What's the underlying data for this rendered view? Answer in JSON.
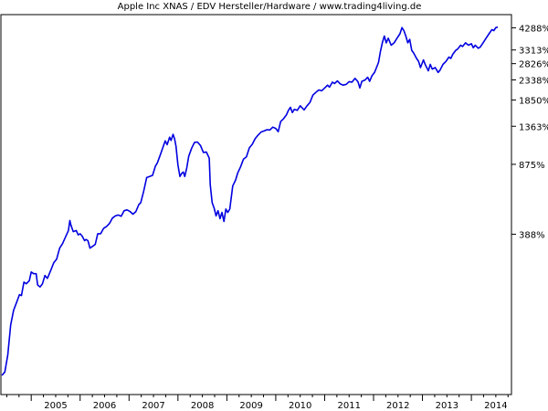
{
  "chart_data": {
    "type": "line",
    "title": "Apple Inc XNAS / EDV Hersteller/Hardware / www.trading4living.de",
    "xlabel": "",
    "ylabel": "",
    "y_scale": "log",
    "y_ticks": [
      {
        "value": 388,
        "label": "388%"
      },
      {
        "value": 875,
        "label": "875%"
      },
      {
        "value": 1363,
        "label": "1363%"
      },
      {
        "value": 1850,
        "label": "1850%"
      },
      {
        "value": 2338,
        "label": "2338%"
      },
      {
        "value": 2826,
        "label": "2826%"
      },
      {
        "value": 3313,
        "label": "3313%"
      },
      {
        "value": 4288,
        "label": "4288%"
      }
    ],
    "x_ticks": [
      "2005",
      "2006",
      "2007",
      "2008",
      "2009",
      "2010",
      "2011",
      "2012",
      "2013",
      "2014"
    ],
    "xlim": [
      2004.38,
      2014.82
    ],
    "ylim": [
      60,
      5000
    ],
    "grid": false,
    "legend": "none",
    "colors": {
      "line": "#0000e0",
      "frame": "#000000"
    },
    "series": [
      {
        "values": [
          [
            2004.4,
            75
          ],
          [
            2004.46,
            78
          ],
          [
            2004.52,
            95
          ],
          [
            2004.58,
            135
          ],
          [
            2004.64,
            160
          ],
          [
            2004.7,
            175
          ],
          [
            2004.76,
            192
          ],
          [
            2004.8,
            190
          ],
          [
            2004.85,
            222
          ],
          [
            2004.9,
            218
          ],
          [
            2004.96,
            226
          ],
          [
            2005.0,
            250
          ],
          [
            2005.05,
            245
          ],
          [
            2005.1,
            245
          ],
          [
            2005.13,
            215
          ],
          [
            2005.18,
            210
          ],
          [
            2005.23,
            218
          ],
          [
            2005.28,
            240
          ],
          [
            2005.33,
            232
          ],
          [
            2005.4,
            255
          ],
          [
            2005.46,
            278
          ],
          [
            2005.52,
            290
          ],
          [
            2005.58,
            330
          ],
          [
            2005.64,
            348
          ],
          [
            2005.7,
            375
          ],
          [
            2005.76,
            405
          ],
          [
            2005.79,
            455
          ],
          [
            2005.81,
            432
          ],
          [
            2005.86,
            400
          ],
          [
            2005.92,
            405
          ],
          [
            2005.96,
            385
          ],
          [
            2006.0,
            390
          ],
          [
            2006.04,
            380
          ],
          [
            2006.09,
            360
          ],
          [
            2006.12,
            365
          ],
          [
            2006.16,
            360
          ],
          [
            2006.2,
            330
          ],
          [
            2006.24,
            335
          ],
          [
            2006.28,
            340
          ],
          [
            2006.31,
            345
          ],
          [
            2006.36,
            390
          ],
          [
            2006.42,
            390
          ],
          [
            2006.48,
            415
          ],
          [
            2006.54,
            425
          ],
          [
            2006.6,
            440
          ],
          [
            2006.66,
            468
          ],
          [
            2006.72,
            480
          ],
          [
            2006.78,
            485
          ],
          [
            2006.84,
            478
          ],
          [
            2006.9,
            510
          ],
          [
            2006.96,
            515
          ],
          [
            2007.02,
            505
          ],
          [
            2007.08,
            490
          ],
          [
            2007.14,
            505
          ],
          [
            2007.2,
            548
          ],
          [
            2007.24,
            560
          ],
          [
            2007.3,
            640
          ],
          [
            2007.36,
            750
          ],
          [
            2007.42,
            760
          ],
          [
            2007.48,
            770
          ],
          [
            2007.54,
            858
          ],
          [
            2007.58,
            890
          ],
          [
            2007.64,
            980
          ],
          [
            2007.7,
            1080
          ],
          [
            2007.74,
            1150
          ],
          [
            2007.78,
            1100
          ],
          [
            2007.83,
            1200
          ],
          [
            2007.86,
            1155
          ],
          [
            2007.9,
            1240
          ],
          [
            2007.93,
            1180
          ],
          [
            2007.96,
            1080
          ],
          [
            2008.0,
            870
          ],
          [
            2008.04,
            760
          ],
          [
            2008.08,
            790
          ],
          [
            2008.11,
            800
          ],
          [
            2008.14,
            760
          ],
          [
            2008.18,
            840
          ],
          [
            2008.22,
            960
          ],
          [
            2008.28,
            1055
          ],
          [
            2008.34,
            1130
          ],
          [
            2008.4,
            1135
          ],
          [
            2008.46,
            1090
          ],
          [
            2008.52,
            1005
          ],
          [
            2008.58,
            1010
          ],
          [
            2008.64,
            940
          ],
          [
            2008.66,
            690
          ],
          [
            2008.7,
            560
          ],
          [
            2008.74,
            525
          ],
          [
            2008.78,
            480
          ],
          [
            2008.82,
            510
          ],
          [
            2008.86,
            465
          ],
          [
            2008.9,
            500
          ],
          [
            2008.94,
            450
          ],
          [
            2008.98,
            520
          ],
          [
            2009.02,
            500
          ],
          [
            2009.06,
            520
          ],
          [
            2009.12,
            680
          ],
          [
            2009.18,
            730
          ],
          [
            2009.22,
            790
          ],
          [
            2009.28,
            850
          ],
          [
            2009.34,
            930
          ],
          [
            2009.4,
            955
          ],
          [
            2009.46,
            1060
          ],
          [
            2009.52,
            1105
          ],
          [
            2009.58,
            1180
          ],
          [
            2009.64,
            1230
          ],
          [
            2009.7,
            1275
          ],
          [
            2009.76,
            1290
          ],
          [
            2009.82,
            1310
          ],
          [
            2009.88,
            1305
          ],
          [
            2009.94,
            1350
          ],
          [
            2010.0,
            1330
          ],
          [
            2010.05,
            1280
          ],
          [
            2010.1,
            1440
          ],
          [
            2010.16,
            1490
          ],
          [
            2010.22,
            1560
          ],
          [
            2010.26,
            1640
          ],
          [
            2010.3,
            1700
          ],
          [
            2010.34,
            1600
          ],
          [
            2010.38,
            1660
          ],
          [
            2010.44,
            1640
          ],
          [
            2010.5,
            1730
          ],
          [
            2010.54,
            1690
          ],
          [
            2010.58,
            1650
          ],
          [
            2010.64,
            1730
          ],
          [
            2010.7,
            1800
          ],
          [
            2010.76,
            1960
          ],
          [
            2010.82,
            2020
          ],
          [
            2010.88,
            2080
          ],
          [
            2010.94,
            2060
          ],
          [
            2011.0,
            2130
          ],
          [
            2011.06,
            2200
          ],
          [
            2011.1,
            2150
          ],
          [
            2011.16,
            2280
          ],
          [
            2011.2,
            2240
          ],
          [
            2011.26,
            2310
          ],
          [
            2011.32,
            2230
          ],
          [
            2011.38,
            2200
          ],
          [
            2011.44,
            2220
          ],
          [
            2011.5,
            2290
          ],
          [
            2011.56,
            2280
          ],
          [
            2011.62,
            2380
          ],
          [
            2011.68,
            2290
          ],
          [
            2011.72,
            2130
          ],
          [
            2011.76,
            2300
          ],
          [
            2011.82,
            2330
          ],
          [
            2011.88,
            2410
          ],
          [
            2011.92,
            2300
          ],
          [
            2011.97,
            2460
          ],
          [
            2012.02,
            2550
          ],
          [
            2012.06,
            2700
          ],
          [
            2012.1,
            2860
          ],
          [
            2012.14,
            3250
          ],
          [
            2012.18,
            3600
          ],
          [
            2012.22,
            3900
          ],
          [
            2012.26,
            3600
          ],
          [
            2012.3,
            3800
          ],
          [
            2012.36,
            3500
          ],
          [
            2012.42,
            3600
          ],
          [
            2012.48,
            3800
          ],
          [
            2012.54,
            4000
          ],
          [
            2012.58,
            4300
          ],
          [
            2012.62,
            4150
          ],
          [
            2012.66,
            3900
          ],
          [
            2012.7,
            3600
          ],
          [
            2012.74,
            3750
          ],
          [
            2012.78,
            3300
          ],
          [
            2012.82,
            3200
          ],
          [
            2012.88,
            3000
          ],
          [
            2012.92,
            2900
          ],
          [
            2012.96,
            2700
          ],
          [
            2013.02,
            2950
          ],
          [
            2013.06,
            2780
          ],
          [
            2013.12,
            2600
          ],
          [
            2013.16,
            2800
          ],
          [
            2013.2,
            2650
          ],
          [
            2013.26,
            2700
          ],
          [
            2013.32,
            2550
          ],
          [
            2013.36,
            2620
          ],
          [
            2013.42,
            2800
          ],
          [
            2013.48,
            2900
          ],
          [
            2013.54,
            3050
          ],
          [
            2013.58,
            3000
          ],
          [
            2013.62,
            3150
          ],
          [
            2013.68,
            3300
          ],
          [
            2013.72,
            3350
          ],
          [
            2013.78,
            3500
          ],
          [
            2013.82,
            3450
          ],
          [
            2013.88,
            3600
          ],
          [
            2013.94,
            3500
          ],
          [
            2014.0,
            3560
          ],
          [
            2014.04,
            3400
          ],
          [
            2014.08,
            3500
          ],
          [
            2014.14,
            3380
          ],
          [
            2014.18,
            3420
          ],
          [
            2014.24,
            3600
          ],
          [
            2014.3,
            3800
          ],
          [
            2014.36,
            4000
          ],
          [
            2014.42,
            4200
          ],
          [
            2014.46,
            4150
          ],
          [
            2014.5,
            4300
          ],
          [
            2014.54,
            4320
          ]
        ]
      }
    ]
  }
}
